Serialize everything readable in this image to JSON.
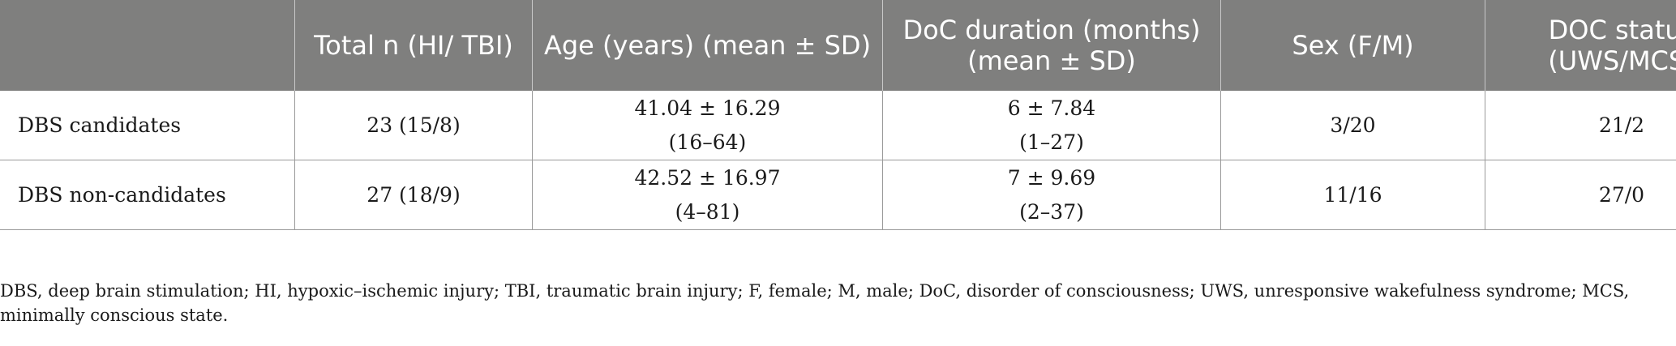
{
  "table": {
    "headers": [
      "",
      "Total n (HI/ TBI)",
      "Age (years) (mean ± SD)",
      "DoC duration (months) (mean ± SD)",
      "Sex (F/M)",
      "DOC status (UWS/MCS)"
    ],
    "rows": [
      {
        "label": "DBS candidates",
        "total": "23 (15/8)",
        "age_mean": "41.04 ± 16.29",
        "age_range": "(16–64)",
        "doc_mean": "6 ± 7.84",
        "doc_range": "(1–27)",
        "sex": "3/20",
        "status": "21/2"
      },
      {
        "label": "DBS non-candidates",
        "total": "27 (18/9)",
        "age_mean": "42.52 ± 16.97",
        "age_range": "(4–81)",
        "doc_mean": "7 ± 9.69",
        "doc_range": "(2–37)",
        "sex": "11/16",
        "status": "27/0"
      }
    ]
  },
  "footnote": "DBS, deep brain stimulation; HI, hypoxic–ischemic injury; TBI, traumatic brain injury; F, female; M, male; DoC, disorder of consciousness; UWS, unresponsive wakefulness syndrome; MCS, minimally conscious state.",
  "colors": {
    "header_bg": "#7f7f7e",
    "header_text": "#ffffff",
    "body_text": "#1a1a1a",
    "grid": "#9a9a9a"
  }
}
